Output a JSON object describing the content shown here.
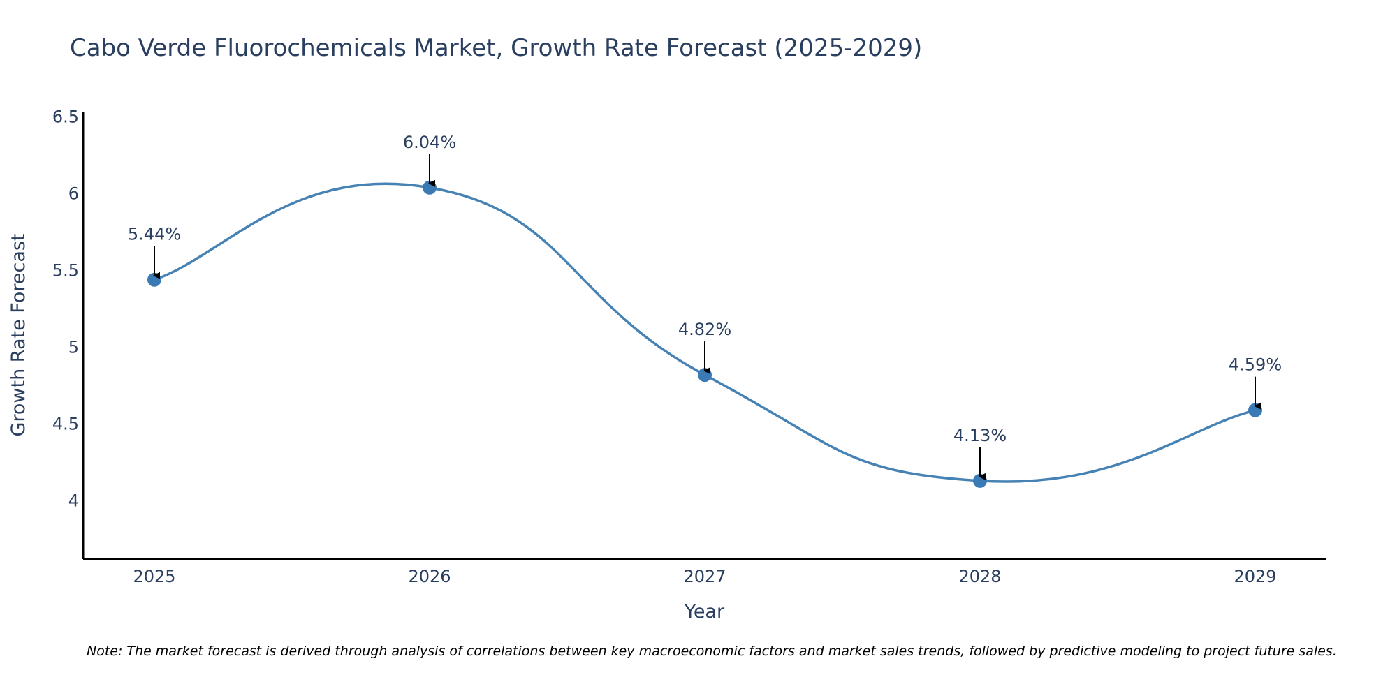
{
  "chart_data": {
    "type": "line",
    "title": "Cabo Verde Fluorochemicals Market, Growth Rate Forecast (2025-2029)",
    "xlabel": "Year",
    "ylabel": "Growth Rate Forecast",
    "categories": [
      "2025",
      "2026",
      "2027",
      "2028",
      "2029"
    ],
    "values": [
      5.44,
      6.04,
      4.82,
      4.13,
      4.59
    ],
    "data_labels": [
      "5.44%",
      "6.04%",
      "4.82%",
      "4.13%",
      "4.59%"
    ],
    "ylim": [
      3.62,
      6.53
    ],
    "yticks": [
      4,
      4.5,
      5,
      5.5,
      6,
      6.5
    ],
    "ytick_labels": [
      "4",
      "4.5",
      "5",
      "5.5",
      "6",
      "6.5"
    ],
    "grid": false,
    "line_color": "#4682b4",
    "marker_color": "#3a7ab5",
    "annotation_arrow_color": "#000000"
  },
  "note": "Note: The market forecast is derived through analysis of correlations between key macroeconomic factors and market sales trends, followed by predictive modeling to project future sales."
}
